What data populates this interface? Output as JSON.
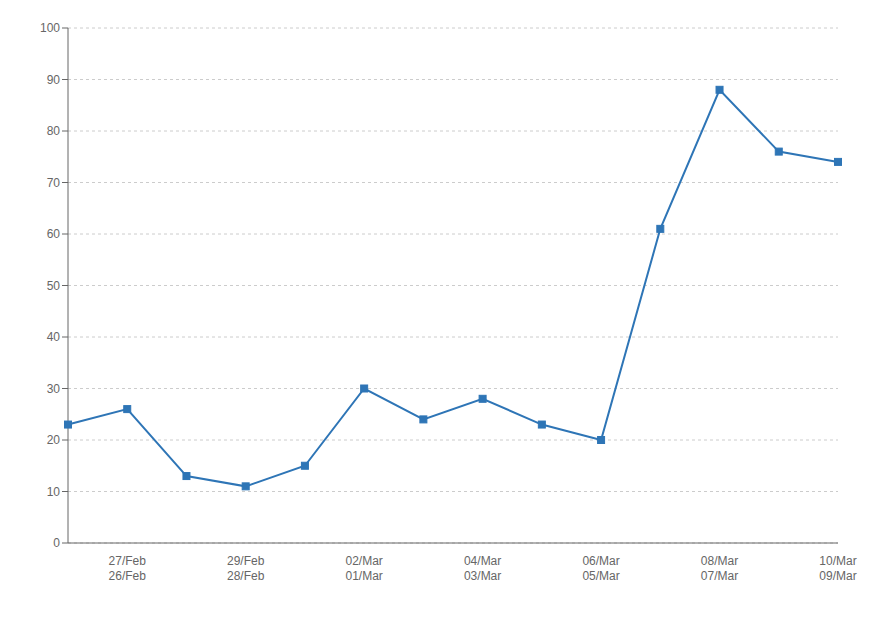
{
  "chart_data": {
    "type": "line",
    "categories": [
      null,
      "27/Feb\n26/Feb",
      null,
      "29/Feb\n28/Feb",
      null,
      "02/Mar\n01/Mar",
      null,
      "04/Mar\n03/Mar",
      null,
      "06/Mar\n05/Mar",
      null,
      "08/Mar\n07/Mar",
      null,
      "10/Mar\n09/Mar"
    ],
    "values": [
      23,
      26,
      13,
      11,
      15,
      30,
      24,
      28,
      23,
      20,
      61,
      88,
      76,
      74
    ],
    "color": "#2E75B6",
    "marker": "square",
    "ylim": [
      0,
      100
    ],
    "yticks": [
      0,
      10,
      20,
      30,
      40,
      50,
      60,
      70,
      80,
      90,
      100
    ],
    "grid": true
  }
}
